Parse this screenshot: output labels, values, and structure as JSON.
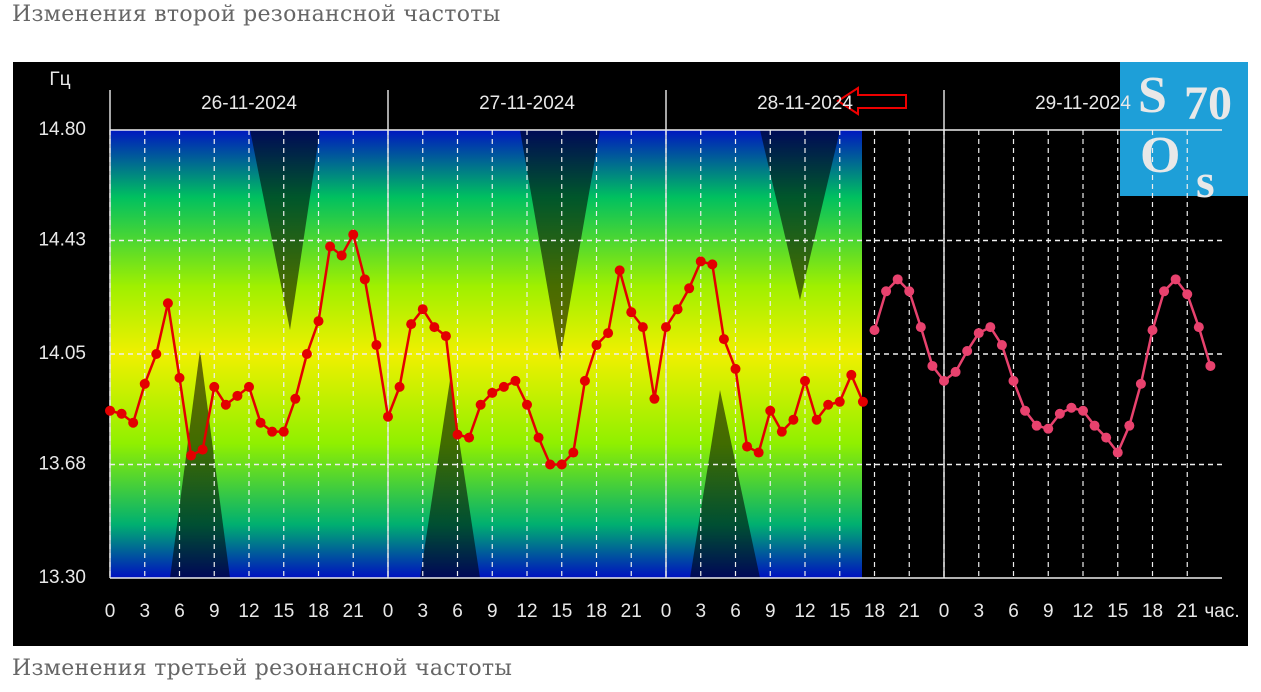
{
  "caption_top": "Изменения второй резонансной частоты",
  "caption_bottom": "Изменения третьей резонансной частоты",
  "logo": [
    "S",
    "70",
    "O",
    "s"
  ],
  "chart_data": {
    "type": "line",
    "y_label": "Гц",
    "x_label": "час.",
    "days": [
      "26-11-2024",
      "27-11-2024",
      "28-11-2024",
      "29-11-2024"
    ],
    "xlim": [
      0,
      96
    ],
    "ylim": [
      13.3,
      14.8
    ],
    "yticks": [
      {
        "value": 13.3,
        "label": "13.30"
      },
      13.68,
      14.05,
      14.43,
      {
        "value": 14.8,
        "label": "14.80"
      }
    ],
    "xticks": [
      0,
      3,
      6,
      9,
      12,
      15,
      18,
      21,
      {
        "value": 24,
        "label": "0"
      },
      {
        "value": 27,
        "label": "3"
      },
      {
        "value": 30,
        "label": "6"
      },
      {
        "value": 33,
        "label": "9"
      },
      {
        "value": 36,
        "label": "12"
      },
      {
        "value": 39,
        "label": "15"
      },
      {
        "value": 42,
        "label": "18"
      },
      {
        "value": 45,
        "label": "21"
      },
      {
        "value": 48,
        "label": "0"
      },
      {
        "value": 51,
        "label": "3"
      },
      {
        "value": 54,
        "label": "6"
      },
      {
        "value": 57,
        "label": "9"
      },
      {
        "value": 60,
        "label": "12"
      },
      {
        "value": 63,
        "label": "15"
      },
      {
        "value": 66,
        "label": "18"
      },
      {
        "value": 69,
        "label": "21"
      },
      {
        "value": 72,
        "label": "0"
      },
      {
        "value": 75,
        "label": "3"
      },
      {
        "value": 78,
        "label": "6"
      },
      {
        "value": 81,
        "label": "9"
      },
      {
        "value": 84,
        "label": "12"
      },
      {
        "value": 87,
        "label": "15"
      },
      {
        "value": 90,
        "label": "18"
      },
      {
        "value": 93,
        "label": "21"
      }
    ],
    "grid": true,
    "series": [
      {
        "color": "#e30000",
        "x": [
          0,
          1,
          2,
          3,
          4,
          5,
          6,
          7,
          8,
          9,
          10,
          11,
          12,
          13,
          14,
          15,
          16,
          17,
          18,
          19,
          20,
          21,
          22,
          23,
          24,
          25,
          26,
          27,
          28,
          29,
          30,
          31,
          32,
          33,
          34,
          35,
          36,
          37,
          38,
          39,
          40,
          41,
          42,
          43,
          44,
          45,
          46,
          47,
          48,
          49,
          50,
          51,
          52,
          53,
          54,
          55,
          56,
          57,
          58,
          59,
          60,
          61,
          62,
          63,
          64,
          65
        ],
        "values": [
          13.86,
          13.85,
          13.82,
          13.95,
          14.05,
          14.22,
          13.97,
          13.71,
          13.73,
          13.94,
          13.88,
          13.91,
          13.94,
          13.82,
          13.79,
          13.79,
          13.9,
          14.05,
          14.16,
          14.41,
          14.38,
          14.45,
          14.3,
          14.08,
          13.84,
          13.94,
          14.15,
          14.2,
          14.14,
          14.11,
          13.78,
          13.77,
          13.88,
          13.92,
          13.94,
          13.96,
          13.88,
          13.77,
          13.68,
          13.68,
          13.72,
          13.96,
          14.08,
          14.12,
          14.33,
          14.19,
          14.14,
          13.9,
          14.14,
          14.2,
          14.27,
          14.36,
          14.35,
          14.1,
          14.0,
          13.74,
          13.72,
          13.86,
          13.79,
          13.83,
          13.96,
          13.83,
          13.88,
          13.89,
          13.98,
          13.89
        ]
      },
      {
        "color": "#e8426e",
        "x": [
          66,
          67,
          68,
          69,
          70,
          71,
          72,
          73,
          74,
          75,
          76,
          77,
          78,
          79,
          80,
          81,
          82,
          83,
          84,
          85,
          86,
          87,
          88,
          89,
          90,
          91,
          92,
          93,
          94,
          95
        ],
        "values": [
          14.13,
          14.26,
          14.3,
          14.26,
          14.14,
          14.01,
          13.96,
          13.99,
          14.06,
          14.12,
          14.14,
          14.08,
          13.96,
          13.86,
          13.81,
          13.8,
          13.85,
          13.87,
          13.86,
          13.81,
          13.77,
          13.72,
          13.81,
          13.95,
          14.13,
          14.26,
          14.3,
          14.25,
          14.14,
          14.01
        ]
      }
    ]
  }
}
